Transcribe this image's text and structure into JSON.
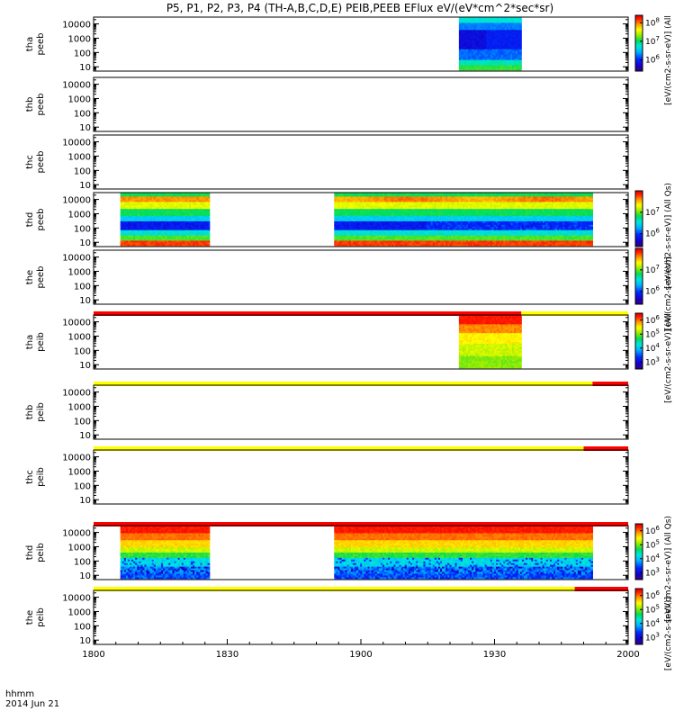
{
  "chart_data": {
    "type": "heatmap",
    "title": "P5, P1, P2, P3, P4 (TH-A,B,C,D,E) PEIB,PEEB EFlux eV/(eV*cm^2*sec*sr)",
    "date_label": "2014 Jun 21",
    "time_format_label": "hhmm",
    "time_ticks": [
      "1800",
      "1830",
      "1900",
      "1930",
      "2000"
    ],
    "time_range_minutes": [
      0,
      120
    ],
    "ylim_eV": [
      5,
      30000
    ],
    "y_ticks": [
      {
        "value": 10,
        "label": "10"
      },
      {
        "value": 100,
        "label": "100"
      },
      {
        "value": 1000,
        "label": "1000"
      },
      {
        "value": 10000,
        "label": "10000"
      }
    ],
    "panels": [
      {
        "label": "tha peeb",
        "label_lines": [
          "tha",
          "peeb"
        ],
        "intervals_min": [
          [
            82,
            96
          ]
        ],
        "colormap": "electron-a",
        "colorbar": {
          "ticks": [
            {
              "exp": 8,
              "label": "10"
            },
            {
              "exp": 7,
              "label": "10"
            },
            {
              "exp": 6,
              "label": "10"
            }
          ],
          "exp_range": [
            5.4,
            8.4
          ],
          "title": "[eV/(cm2-s-sr-eV)] (All"
        }
      },
      {
        "label": "thb peeb",
        "label_lines": [
          "thb",
          "peeb"
        ],
        "intervals_min": [],
        "colormap": "none",
        "colorbar": null
      },
      {
        "label": "thc peeb",
        "label_lines": [
          "thc",
          "peeb"
        ],
        "intervals_min": [],
        "colormap": "none",
        "colorbar": null
      },
      {
        "label": "thd peeb",
        "label_lines": [
          "thd",
          "peeb"
        ],
        "intervals_min": [
          [
            6,
            26
          ],
          [
            54,
            112
          ]
        ],
        "colormap": "electron-d",
        "colorbar": {
          "ticks": [
            {
              "exp": 7,
              "label": "10"
            },
            {
              "exp": 6,
              "label": "10"
            }
          ],
          "exp_range": [
            5.4,
            8.0
          ],
          "title": "[eV/(cm2-s-sr-eV)] (All Qs)"
        }
      },
      {
        "label": "the peeb",
        "label_lines": [
          "the",
          "peeb"
        ],
        "intervals_min": [],
        "colormap": "none",
        "colorbar": {
          "ticks": [
            {
              "exp": 7,
              "label": "10"
            },
            {
              "exp": 6,
              "label": "10"
            }
          ],
          "exp_range": [
            5.4,
            8.0
          ],
          "title": "[eV/(cm2-s-sr-eV)]"
        }
      },
      {
        "label": "tha peib",
        "label_lines": [
          "tha",
          "peib"
        ],
        "intervals_min": [
          [
            82,
            96
          ]
        ],
        "colormap": "ion-a",
        "colorbar": {
          "ticks": [
            {
              "exp": 6,
              "label": "10"
            },
            {
              "exp": 5,
              "label": "10"
            },
            {
              "exp": 4,
              "label": "10"
            },
            {
              "exp": 3,
              "label": "10"
            }
          ],
          "exp_range": [
            2.5,
            6.5
          ],
          "title": "[eV/(cm2-s-sr-eV)] (All"
        }
      },
      {
        "label": "thb peib",
        "label_lines": [
          "thb",
          "peib"
        ],
        "intervals_min": [],
        "colormap": "none",
        "colorbar": null
      },
      {
        "label": "thc peib",
        "label_lines": [
          "thc",
          "peib"
        ],
        "intervals_min": [],
        "colormap": "none",
        "colorbar": null
      },
      {
        "label": "thd peib",
        "label_lines": [
          "thd",
          "peib"
        ],
        "intervals_min": [
          [
            6,
            26
          ],
          [
            54,
            112
          ]
        ],
        "colormap": "ion-d",
        "colorbar": {
          "ticks": [
            {
              "exp": 6,
              "label": "10"
            },
            {
              "exp": 5,
              "label": "10"
            },
            {
              "exp": 4,
              "label": "10"
            },
            {
              "exp": 3,
              "label": "10"
            }
          ],
          "exp_range": [
            2.5,
            6.5
          ],
          "title": "[eV/(cm2-s-sr-eV)] (All Qs)"
        }
      },
      {
        "label": "the peib",
        "label_lines": [
          "the",
          "peib"
        ],
        "intervals_min": [],
        "colormap": "none",
        "colorbar": {
          "ticks": [
            {
              "exp": 6,
              "label": "10"
            },
            {
              "exp": 5,
              "label": "10"
            },
            {
              "exp": 4,
              "label": "10"
            },
            {
              "exp": 3,
              "label": "10"
            }
          ],
          "exp_range": [
            2.5,
            6.5
          ],
          "title": "[eV/(cm2-s-sr-eV)]"
        }
      }
    ],
    "mode_bars": [
      {
        "after_panel": "the peeb",
        "segments": [
          {
            "from": 0,
            "to": 96,
            "color": "#ff0000"
          },
          {
            "from": 96,
            "to": 120,
            "color": "#ffff00"
          }
        ]
      },
      {
        "after_panel": "tha peib",
        "segments": [
          {
            "from": 0,
            "to": 112,
            "color": "#ffff00"
          },
          {
            "from": 112,
            "to": 120,
            "color": "#ff0000"
          }
        ]
      },
      {
        "after_panel": "thb peib",
        "segments": [
          {
            "from": 0,
            "to": 110,
            "color": "#ffff00"
          },
          {
            "from": 110,
            "to": 120,
            "color": "#ff0000"
          }
        ]
      },
      {
        "after_panel": "thc peib",
        "segments": [
          {
            "from": 0,
            "to": 120,
            "color": "#ff0000"
          }
        ]
      },
      {
        "after_panel": "thd peib",
        "segments": [
          {
            "from": 0,
            "to": 108,
            "color": "#ffff00"
          },
          {
            "from": 108,
            "to": 120,
            "color": "#ff0000"
          }
        ]
      }
    ]
  }
}
